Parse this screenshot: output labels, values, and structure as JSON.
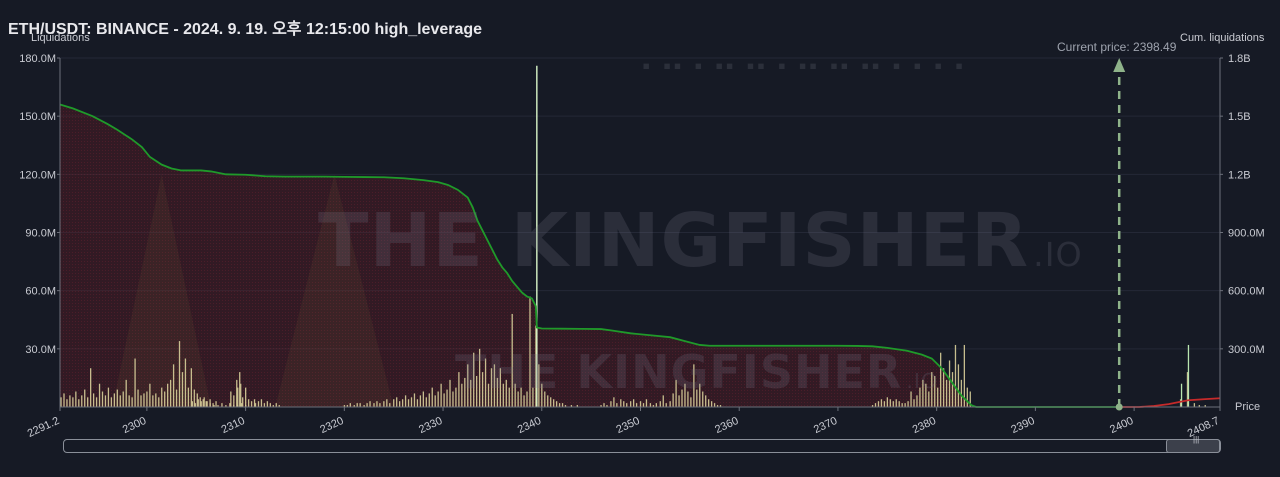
{
  "title": "ETH/USDT: BINANCE - 2024. 9. 19. 오후 12:15:00 high_leverage",
  "left_axis_title": "Liquidations",
  "right_axis_title": "Cum. liquidations",
  "price_axis_title": "Price",
  "current_price_label": "Current price: 2398.49",
  "watermark": {
    "text": "THE KINGFISHER",
    "suffix": ".IO"
  },
  "chart_data": {
    "type": "bar",
    "current_price": 2398.49,
    "x_range": [
      2291.2,
      2408.7
    ],
    "x_ticks": [
      2291.2,
      2300,
      2310,
      2320,
      2330,
      2340,
      2350,
      2360,
      2370,
      2380,
      2390,
      2400,
      2408.7
    ],
    "x_tick_labels": [
      "2291.2",
      "2300",
      "2310",
      "2320",
      "2330",
      "2340",
      "2350",
      "2360",
      "2370",
      "2380",
      "2390",
      "2400",
      "2408.7"
    ],
    "y_left": {
      "range": [
        0,
        180000000
      ],
      "ticks": [
        30000000,
        60000000,
        90000000,
        120000000,
        150000000,
        180000000
      ],
      "tick_labels": [
        "30.0M",
        "60.0M",
        "90.0M",
        "120.0M",
        "150.0M",
        "180.0M"
      ]
    },
    "y_right": {
      "range": [
        0,
        1800000000
      ],
      "ticks": [
        300000000,
        600000000,
        900000000,
        1200000000,
        1500000000,
        1800000000
      ],
      "tick_labels": [
        "300.0M",
        "600.0M",
        "900.0M",
        "1.2B",
        "1.5B",
        "1.8B"
      ]
    },
    "liquidation_bars": [
      [
        2291.3,
        5
      ],
      [
        2291.6,
        7
      ],
      [
        2291.9,
        4
      ],
      [
        2292.2,
        6
      ],
      [
        2292.5,
        5
      ],
      [
        2292.8,
        8
      ],
      [
        2293.1,
        4
      ],
      [
        2293.4,
        6
      ],
      [
        2293.7,
        9
      ],
      [
        2294.0,
        5
      ],
      [
        2294.3,
        20
      ],
      [
        2294.6,
        7
      ],
      [
        2294.9,
        5
      ],
      [
        2295.2,
        12
      ],
      [
        2295.5,
        8
      ],
      [
        2295.8,
        6
      ],
      [
        2296.1,
        10
      ],
      [
        2296.4,
        5
      ],
      [
        2296.7,
        7
      ],
      [
        2297.0,
        9
      ],
      [
        2297.3,
        6
      ],
      [
        2297.6,
        8
      ],
      [
        2297.9,
        14
      ],
      [
        2298.2,
        6
      ],
      [
        2298.5,
        5
      ],
      [
        2298.8,
        25
      ],
      [
        2299.1,
        9
      ],
      [
        2299.4,
        6
      ],
      [
        2299.7,
        7
      ],
      [
        2300.0,
        8
      ],
      [
        2300.3,
        12
      ],
      [
        2300.6,
        6
      ],
      [
        2300.9,
        7
      ],
      [
        2301.2,
        5
      ],
      [
        2301.5,
        10
      ],
      [
        2301.8,
        8
      ],
      [
        2302.1,
        12
      ],
      [
        2302.4,
        14
      ],
      [
        2302.7,
        22
      ],
      [
        2303.0,
        9
      ],
      [
        2303.3,
        34
      ],
      [
        2303.6,
        18
      ],
      [
        2303.9,
        25
      ],
      [
        2304.2,
        10
      ],
      [
        2304.5,
        20
      ],
      [
        2304.8,
        9
      ],
      [
        2305.1,
        7
      ],
      [
        2305.4,
        5
      ],
      [
        2305.7,
        4
      ],
      [
        2306.0,
        3
      ],
      [
        2306.4,
        2
      ],
      [
        2306.8,
        1
      ],
      [
        2307.2,
        1
      ],
      [
        2307.6,
        2
      ],
      [
        2308.0,
        1
      ],
      [
        2308.4,
        2
      ],
      [
        2308.8,
        1
      ],
      [
        2309.2,
        1
      ],
      [
        2309.6,
        2
      ],
      [
        2310.0,
        1
      ],
      [
        2304.6,
        3
      ],
      [
        2304.9,
        2
      ],
      [
        2305.2,
        4
      ],
      [
        2305.5,
        3
      ],
      [
        2305.8,
        5
      ],
      [
        2306.1,
        3
      ],
      [
        2306.4,
        4
      ],
      [
        2306.7,
        2
      ],
      [
        2307.0,
        3
      ],
      [
        2311.0,
        2
      ],
      [
        2311.3,
        3
      ],
      [
        2311.6,
        4
      ],
      [
        2311.9,
        2
      ],
      [
        2312.2,
        3
      ],
      [
        2312.5,
        2
      ],
      [
        2312.8,
        1
      ],
      [
        2313.1,
        2
      ],
      [
        2313.4,
        1
      ],
      [
        2308.5,
        8
      ],
      [
        2308.8,
        6
      ],
      [
        2309.1,
        14
      ],
      [
        2309.4,
        18
      ],
      [
        2309.7,
        5
      ],
      [
        2310.0,
        10
      ],
      [
        2310.3,
        4
      ],
      [
        2310.6,
        3
      ],
      [
        2310.9,
        4
      ],
      [
        2309.5,
        12
      ],
      [
        2309.2,
        10
      ],
      [
        2320.0,
        1
      ],
      [
        2320.3,
        1
      ],
      [
        2320.6,
        2
      ],
      [
        2321.0,
        1
      ],
      [
        2321.3,
        2
      ],
      [
        2321.6,
        2
      ],
      [
        2322.0,
        1
      ],
      [
        2322.3,
        2
      ],
      [
        2322.6,
        3
      ],
      [
        2323.0,
        2
      ],
      [
        2323.3,
        3
      ],
      [
        2323.6,
        2
      ],
      [
        2324.0,
        3
      ],
      [
        2324.3,
        4
      ],
      [
        2324.6,
        2
      ],
      [
        2325.0,
        4
      ],
      [
        2325.3,
        5
      ],
      [
        2325.6,
        3
      ],
      [
        2325.9,
        4
      ],
      [
        2326.2,
        6
      ],
      [
        2326.5,
        4
      ],
      [
        2326.8,
        5
      ],
      [
        2327.1,
        7
      ],
      [
        2327.4,
        4
      ],
      [
        2327.7,
        6
      ],
      [
        2328.0,
        8
      ],
      [
        2328.3,
        5
      ],
      [
        2328.6,
        7
      ],
      [
        2328.9,
        10
      ],
      [
        2329.2,
        6
      ],
      [
        2329.5,
        8
      ],
      [
        2329.8,
        12
      ],
      [
        2330.1,
        7
      ],
      [
        2330.4,
        9
      ],
      [
        2330.7,
        14
      ],
      [
        2331.0,
        8
      ],
      [
        2331.3,
        10
      ],
      [
        2331.6,
        18
      ],
      [
        2331.9,
        12
      ],
      [
        2332.2,
        15
      ],
      [
        2332.5,
        22
      ],
      [
        2332.8,
        14
      ],
      [
        2333.1,
        28
      ],
      [
        2333.4,
        16
      ],
      [
        2333.7,
        30
      ],
      [
        2334.0,
        18
      ],
      [
        2334.3,
        25
      ],
      [
        2334.6,
        12
      ],
      [
        2334.9,
        20
      ],
      [
        2335.2,
        22
      ],
      [
        2335.5,
        15
      ],
      [
        2335.8,
        20
      ],
      [
        2336.1,
        12
      ],
      [
        2336.4,
        14
      ],
      [
        2336.7,
        10
      ],
      [
        2337.0,
        48
      ],
      [
        2337.3,
        12
      ],
      [
        2337.6,
        8
      ],
      [
        2337.9,
        10
      ],
      [
        2338.2,
        6
      ],
      [
        2338.5,
        8
      ],
      [
        2338.8,
        57
      ],
      [
        2339.1,
        10
      ],
      [
        2339.4,
        42
      ],
      [
        2339.7,
        22
      ],
      [
        2340.0,
        12
      ],
      [
        2340.3,
        8
      ],
      [
        2340.6,
        6
      ],
      [
        2340.9,
        5
      ],
      [
        2341.2,
        4
      ],
      [
        2341.5,
        3
      ],
      [
        2341.8,
        2
      ],
      [
        2342.1,
        2
      ],
      [
        2342.4,
        1
      ],
      [
        2343.0,
        1
      ],
      [
        2343.6,
        1
      ],
      [
        2346.0,
        1
      ],
      [
        2346.3,
        2
      ],
      [
        2346.6,
        1
      ],
      [
        2347.0,
        3
      ],
      [
        2347.3,
        5
      ],
      [
        2347.6,
        2
      ],
      [
        2348.0,
        4
      ],
      [
        2348.3,
        3
      ],
      [
        2348.6,
        2
      ],
      [
        2349.0,
        3
      ],
      [
        2349.3,
        4
      ],
      [
        2349.6,
        2
      ],
      [
        2350.0,
        3
      ],
      [
        2350.3,
        2
      ],
      [
        2350.6,
        4
      ],
      [
        2351.0,
        2
      ],
      [
        2351.3,
        1
      ],
      [
        2351.6,
        2
      ],
      [
        2352.0,
        3
      ],
      [
        2352.3,
        6
      ],
      [
        2352.6,
        2
      ],
      [
        2353.0,
        3
      ],
      [
        2353.3,
        7
      ],
      [
        2353.6,
        14
      ],
      [
        2353.9,
        6
      ],
      [
        2354.2,
        9
      ],
      [
        2354.5,
        12
      ],
      [
        2354.8,
        8
      ],
      [
        2355.1,
        5
      ],
      [
        2355.4,
        22
      ],
      [
        2355.7,
        9
      ],
      [
        2356.0,
        12
      ],
      [
        2356.3,
        8
      ],
      [
        2356.6,
        6
      ],
      [
        2356.9,
        4
      ],
      [
        2357.2,
        3
      ],
      [
        2357.5,
        2
      ],
      [
        2357.8,
        1
      ],
      [
        2358.1,
        1
      ],
      [
        2373.5,
        1
      ],
      [
        2373.8,
        2
      ],
      [
        2374.1,
        3
      ],
      [
        2374.4,
        4
      ],
      [
        2374.7,
        3
      ],
      [
        2375.0,
        5
      ],
      [
        2375.3,
        4
      ],
      [
        2375.6,
        3
      ],
      [
        2375.9,
        4
      ],
      [
        2376.2,
        3
      ],
      [
        2376.5,
        2
      ],
      [
        2376.8,
        2
      ],
      [
        2377.1,
        3
      ],
      [
        2377.4,
        8
      ],
      [
        2377.7,
        4
      ],
      [
        2378.0,
        6
      ],
      [
        2378.3,
        10
      ],
      [
        2378.6,
        14
      ],
      [
        2378.9,
        12
      ],
      [
        2379.2,
        8
      ],
      [
        2379.5,
        18
      ],
      [
        2379.8,
        16
      ],
      [
        2380.1,
        10
      ],
      [
        2380.4,
        28
      ],
      [
        2380.7,
        20
      ],
      [
        2381.0,
        14
      ],
      [
        2381.3,
        24
      ],
      [
        2381.6,
        18
      ],
      [
        2381.9,
        32
      ],
      [
        2382.2,
        22
      ],
      [
        2382.5,
        14
      ],
      [
        2382.8,
        32
      ],
      [
        2383.1,
        10
      ],
      [
        2383.4,
        8
      ],
      [
        2404.7,
        4
      ],
      [
        2405.4,
        18
      ],
      [
        2406.1,
        2
      ],
      [
        2406.6,
        1
      ],
      [
        2407.2,
        1
      ]
    ],
    "spike": {
      "x": 2339.5,
      "value": 176000000
    },
    "cumulative_left": [
      [
        2291.2,
        1560
      ],
      [
        2292.5,
        1540
      ],
      [
        2294.5,
        1500
      ],
      [
        2296.0,
        1460
      ],
      [
        2297.0,
        1430
      ],
      [
        2298.5,
        1380
      ],
      [
        2299.5,
        1340
      ],
      [
        2300.3,
        1290
      ],
      [
        2301.5,
        1250
      ],
      [
        2302.5,
        1230
      ],
      [
        2303.5,
        1220
      ],
      [
        2304.0,
        1220
      ],
      [
        2305.5,
        1220
      ],
      [
        2306.5,
        1215
      ],
      [
        2307.5,
        1205
      ],
      [
        2308.0,
        1200
      ],
      [
        2310.0,
        1198
      ],
      [
        2312.0,
        1190
      ],
      [
        2314.0,
        1188
      ],
      [
        2316.0,
        1188
      ],
      [
        2318.0,
        1188
      ],
      [
        2320.0,
        1187
      ],
      [
        2322.0,
        1186
      ],
      [
        2324.0,
        1185
      ],
      [
        2326.0,
        1180
      ],
      [
        2328.0,
        1170
      ],
      [
        2329.5,
        1160
      ],
      [
        2330.5,
        1145
      ],
      [
        2331.5,
        1120
      ],
      [
        2332.5,
        1080
      ],
      [
        2333.0,
        1030
      ],
      [
        2333.5,
        960
      ],
      [
        2334.0,
        910
      ],
      [
        2334.5,
        860
      ],
      [
        2335.0,
        810
      ],
      [
        2335.5,
        760
      ],
      [
        2336.0,
        720
      ],
      [
        2336.5,
        690
      ],
      [
        2337.0,
        650
      ],
      [
        2337.5,
        620
      ],
      [
        2338.0,
        590
      ],
      [
        2338.5,
        570
      ],
      [
        2339.0,
        560
      ],
      [
        2339.4,
        520
      ],
      [
        2339.5,
        410
      ],
      [
        2340.0,
        405
      ],
      [
        2342.0,
        404
      ],
      [
        2344.0,
        403
      ],
      [
        2346.0,
        402
      ],
      [
        2347.0,
        395
      ],
      [
        2349.0,
        380
      ],
      [
        2351.0,
        370
      ],
      [
        2353.0,
        360
      ],
      [
        2354.5,
        340
      ],
      [
        2356.0,
        320
      ],
      [
        2357.0,
        316
      ],
      [
        2360.0,
        316
      ],
      [
        2365.0,
        316
      ],
      [
        2370.0,
        316
      ],
      [
        2372.0,
        315
      ],
      [
        2373.5,
        313
      ],
      [
        2375.0,
        305
      ],
      [
        2377.0,
        290
      ],
      [
        2378.5,
        270
      ],
      [
        2379.5,
        250
      ],
      [
        2380.5,
        200
      ],
      [
        2381.5,
        130
      ],
      [
        2382.5,
        60
      ],
      [
        2383.5,
        10
      ],
      [
        2384.0,
        0
      ],
      [
        2398.49,
        0
      ]
    ],
    "cumulative_right": [
      [
        2398.49,
        0
      ],
      [
        2400.5,
        0
      ],
      [
        2402.0,
        5
      ],
      [
        2403.5,
        15
      ],
      [
        2404.5,
        25
      ],
      [
        2405.5,
        35
      ],
      [
        2407.0,
        40
      ],
      [
        2408.7,
        45
      ]
    ]
  }
}
